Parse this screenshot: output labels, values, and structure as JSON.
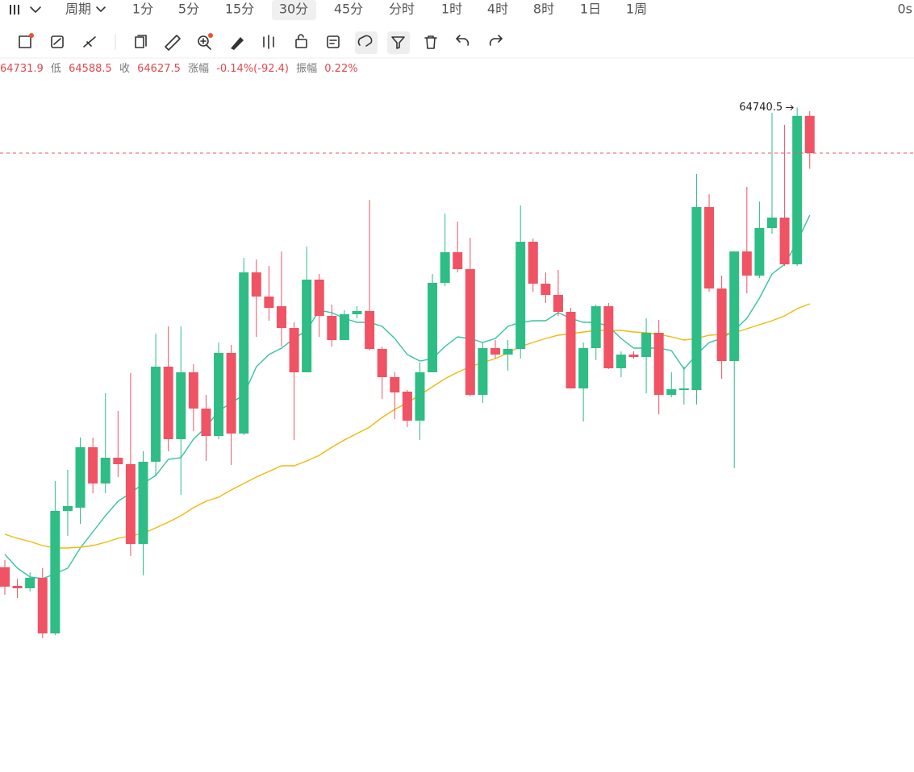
{
  "toolbar": {
    "period_label": "周期",
    "intervals": [
      "1分",
      "5分",
      "15分",
      "30分",
      "45分",
      "分时",
      "1时",
      "4时",
      "8时",
      "1日",
      "1周"
    ],
    "selected_index": 3,
    "status": "0s"
  },
  "info_bar": {
    "low_label": "低",
    "close_label": "收",
    "change_label": "涨幅",
    "change": "-0.14%(-92.4)",
    "amplitude_label": "振幅",
    "amplitude": "0.22%"
  },
  "chart_data": {
    "type": "candlestick",
    "open": [
      63599.5,
      63553.5,
      63547.5,
      63573.5,
      63435.5,
      63739.5,
      63747.5,
      63897.5,
      63807.5,
      63871.5,
      63855.5,
      63657.5,
      63861.5,
      64097.5,
      63917.5,
      64083.5,
      63993.5,
      63925.5,
      64131.5,
      63931.5,
      64331.5,
      64271.5,
      64247.5,
      64193.5,
      64083.5,
      64313.5,
      64223.5,
      64163.5,
      64227.5,
      64235.5,
      64141.5,
      64071.5,
      64035.5,
      63963.5,
      64083.5,
      64305.5,
      64381.5,
      64339.5,
      64027.5,
      64143.5,
      64127.5,
      64141.5,
      64407.5,
      64303.5,
      64275.5,
      64233.5,
      64043.5,
      64143.5,
      64247.5,
      64093.5,
      64127.5,
      64121.5,
      64181.5,
      64027.5,
      64039.5,
      64039.5,
      64493.5,
      64291.5,
      64111.5,
      64383.5,
      64323.5,
      64441.5,
      64467.5,
      64351.5,
      64719.9
    ],
    "high": [
      63617.5,
      63571.5,
      63587.5,
      63597.5,
      63813.5,
      63841.5,
      63921.5,
      63921.5,
      64031.5,
      63987.5,
      64081.5,
      63887.5,
      64179.5,
      64197.5,
      64197.5,
      64103.5,
      64027.5,
      64157.5,
      64151.5,
      64367.5,
      64363.5,
      64347.5,
      64383.5,
      64207.5,
      64395.5,
      64327.5,
      64251.5,
      64237.5,
      64247.5,
      64511.5,
      64147.5,
      64083.5,
      64039.5,
      64107.5,
      64327.5,
      64477.5,
      64457.5,
      64417.5,
      64157.5,
      64163.5,
      64163.5,
      64497.5,
      64415.5,
      64331.5,
      64337.5,
      64243.5,
      64157.5,
      64251.5,
      64255.5,
      64135.5,
      64135.5,
      64217.5,
      64213.5,
      64083.5,
      64097.5,
      64575.5,
      64525.5,
      64323.5,
      64383.5,
      64543.5,
      64507.5,
      64727.5,
      64697.5,
      64740.5,
      64731.9
    ],
    "low": [
      63531.5,
      63523.5,
      63539.5,
      63423.5,
      63431.5,
      63677.5,
      63707.5,
      63783.5,
      63783.5,
      63823.5,
      63627.5,
      63579.5,
      63827.5,
      63887.5,
      63779.5,
      63937.5,
      63863.5,
      63917.5,
      63853.5,
      63927.5,
      64171.5,
      64211.5,
      64147.5,
      63915.5,
      64083.5,
      64171.5,
      64147.5,
      64163.5,
      64217.5,
      64137.5,
      64017.5,
      63967.5,
      63947.5,
      63915.5,
      64083.5,
      64297.5,
      64331.5,
      64023.5,
      64007.5,
      64117.5,
      64087.5,
      64117.5,
      64283.5,
      64255.5,
      64223.5,
      64043.5,
      63961.5,
      64113.5,
      64091.5,
      64071.5,
      64117.5,
      64031.5,
      63979.5,
      64021.5,
      64003.5,
      64003.5,
      64283.5,
      64067.5,
      63845.5,
      64279.5,
      64317.5,
      64427.5,
      64347.5,
      64347.5,
      64588.5
    ],
    "close": [
      63551.5,
      63547.5,
      63573.5,
      63435.5,
      63739.5,
      63751.5,
      63897.5,
      63807.5,
      63871.5,
      63855.5,
      63657.5,
      63861.5,
      64097.5,
      63917.5,
      64083.5,
      63993.5,
      63925.5,
      64131.5,
      63931.5,
      64331.5,
      64271.5,
      64243.5,
      64193.5,
      64083.5,
      64313.5,
      64223.5,
      64163.5,
      64227.5,
      64235.5,
      64141.5,
      64071.5,
      64033.5,
      63963.5,
      64083.5,
      64305.5,
      64381.5,
      64339.5,
      64027.5,
      64143.5,
      64127.5,
      64141.5,
      64407.5,
      64303.5,
      64275.5,
      64233.5,
      64043.5,
      64143.5,
      64247.5,
      64093.5,
      64127.5,
      64121.5,
      64181.5,
      64027.5,
      64041.5,
      64043.5,
      64493.5,
      64291.5,
      64111.5,
      64383.5,
      64323.5,
      64441.5,
      64467.5,
      64351.5,
      64719.9,
      64627.5
    ],
    "up_color": "#2ebd85",
    "down_color": "#ef5364",
    "series": [
      {
        "color": "#35c3a2",
        "values": [
          63631.5,
          63597.5,
          63575.5,
          63571.5,
          63583.5,
          63597.5,
          63647.5,
          63687.5,
          63727.5,
          63763.5,
          63783.5,
          63807.5,
          63827.5,
          63867.5,
          63871.5,
          63917.5,
          63947.5,
          63987.5,
          64007.5,
          64027.5,
          64097.5,
          64127.5,
          64143.5,
          64167.5,
          64187.5,
          64237.5,
          64231.5,
          64217.5,
          64207.5,
          64207.5,
          64197.5,
          64167.5,
          64127.5,
          64111.5,
          64117.5,
          64147.5,
          64171.5,
          64167.5,
          64157.5,
          64167.5,
          64197.5,
          64207.5,
          64211.5,
          64211.5,
          64231.5,
          64217.5,
          64207.5,
          64207.5,
          64197.5,
          64167.5,
          64143.5,
          64143.5,
          64143.5,
          64137.5,
          64091.5,
          64127.5,
          64157.5,
          64167.5,
          64187.5,
          64217.5,
          64267.5,
          64327.5,
          64351.5,
          64407.5,
          64473.5
        ]
      },
      {
        "color": "#f0b90b",
        "values": [
          63681.5,
          63671.5,
          63663.5,
          63653.5,
          63647.5,
          63647.5,
          63649.5,
          63653.5,
          63661.5,
          63671.5,
          63677.5,
          63683.5,
          63697.5,
          63711.5,
          63727.5,
          63747.5,
          63763.5,
          63773.5,
          63791.5,
          63807.5,
          63823.5,
          63837.5,
          63851.5,
          63851.5,
          63863.5,
          63877.5,
          63897.5,
          63915.5,
          63931.5,
          63947.5,
          63971.5,
          63991.5,
          64007.5,
          64027.5,
          64047.5,
          64067.5,
          64083.5,
          64097.5,
          64107.5,
          64117.5,
          64131.5,
          64147.5,
          64157.5,
          64167.5,
          64175.5,
          64179.5,
          64183.5,
          64187.5,
          64187.5,
          64187.5,
          64183.5,
          64181.5,
          64177.5,
          64171.5,
          64163.5,
          64167.5,
          64175.5,
          64177.5,
          64181.5,
          64191.5,
          64201.5,
          64211.5,
          64223.5,
          64241.5,
          64253.5
        ]
      }
    ],
    "ylim": [
      63091.5,
      64817.5
    ]
  }
}
